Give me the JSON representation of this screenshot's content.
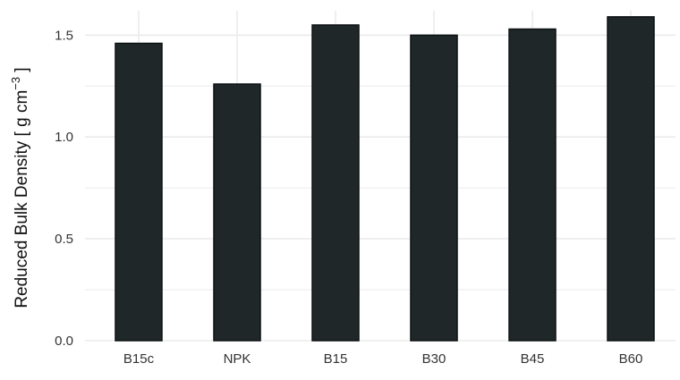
{
  "chart_data": {
    "type": "bar",
    "categories": [
      "B15c",
      "NPK",
      "B15",
      "B30",
      "B45",
      "B60"
    ],
    "values": [
      1.46,
      1.26,
      1.55,
      1.5,
      1.53,
      1.59
    ],
    "title": "",
    "xlabel": "",
    "ylabel": {
      "prefix": "Reduced Bulk Density [ g cm",
      "superscript": "−3",
      "suffix": " ]"
    },
    "ylim": [
      0,
      1.62
    ],
    "yticks": [
      "0.0",
      "0.5",
      "1.0",
      "1.5"
    ],
    "grid": true,
    "bar_color": "#1f2729",
    "grid_color": "#ebebeb"
  }
}
